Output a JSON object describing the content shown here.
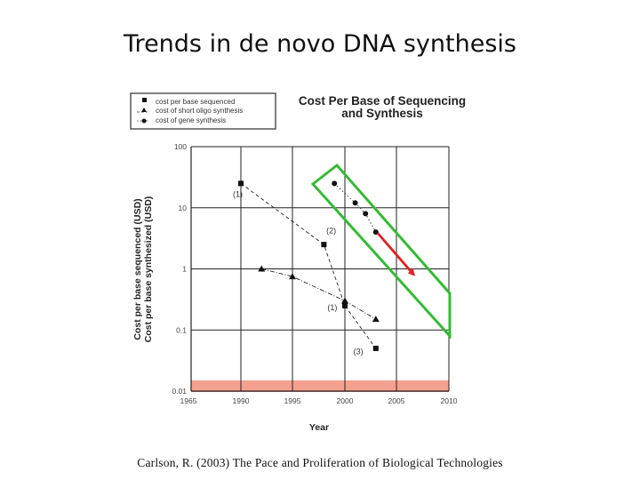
{
  "slide": {
    "title": "Trends in de novo DNA synthesis",
    "citation": "Carlson, R. (2003) The Pace and Proliferation of Biological Technologies"
  },
  "chart_data": {
    "type": "scatter",
    "title_lines": [
      "Cost Per Base of Sequencing",
      "and Synthesis"
    ],
    "xlabel": "Year",
    "ylabel_lines": [
      "Cost per base sequenced (USD)",
      "Cost per base synthesized (USD)"
    ],
    "xlim": [
      1965,
      2010
    ],
    "ylim": [
      0.01,
      100
    ],
    "y_scale": "log",
    "x_ticks": [
      "1965",
      "1990",
      "1995",
      "2000",
      "2005",
      "2010"
    ],
    "y_ticks": [
      "100",
      "10",
      "1",
      "0.1",
      "0.01"
    ],
    "grid": true,
    "legend_position": "top-left",
    "series": [
      {
        "name": "cost per base sequenced",
        "marker": "square",
        "line": "dashed",
        "points": [
          [
            1990,
            25
          ],
          [
            1998,
            2.5
          ],
          [
            2000,
            0.25
          ],
          [
            2003,
            0.05
          ]
        ]
      },
      {
        "name": "cost of short oligo synthesis",
        "marker": "triangle",
        "line": "dash-dot",
        "points": [
          [
            1992,
            1.0
          ],
          [
            1995,
            0.75
          ],
          [
            2000,
            0.3
          ],
          [
            2003,
            0.15
          ]
        ]
      },
      {
        "name": "cost of gene synthesis",
        "marker": "circle",
        "line": "dotted",
        "points": [
          [
            1999,
            25
          ],
          [
            2001,
            12
          ],
          [
            2002,
            8
          ],
          [
            2003,
            4
          ]
        ]
      }
    ],
    "annotations": [
      {
        "text": "(1)",
        "x": 1988.5,
        "y": 15
      },
      {
        "text": "(2)",
        "x": 1998.7,
        "y": 3.8
      },
      {
        "text": "(1)",
        "x": 1998.8,
        "y": 0.21
      },
      {
        "text": "(3)",
        "x": 2001.3,
        "y": 0.04
      }
    ],
    "overlays": {
      "band_color": "#f4a190",
      "band_y_range": [
        0.01,
        0.015
      ],
      "trend_box_color": "#33bb33",
      "arrow_color": "#e02020",
      "arrow_from": [
        2003,
        4
      ],
      "arrow_to": [
        2007,
        0.8
      ]
    }
  }
}
